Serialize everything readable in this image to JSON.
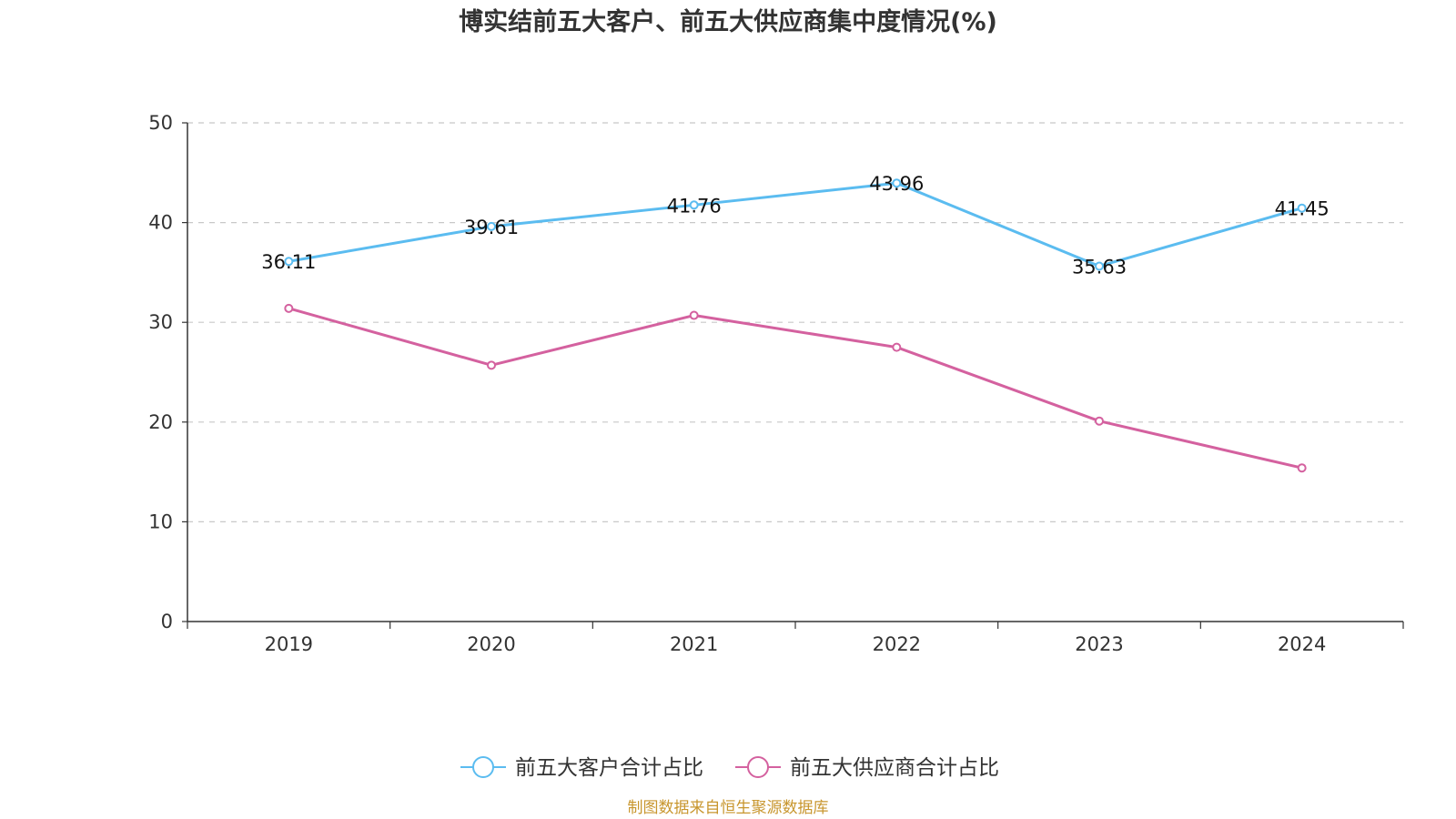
{
  "chart_data": {
    "type": "line",
    "title": "博实结前五大客户、前五大供应商集中度情况(%)",
    "categories": [
      "2019",
      "2020",
      "2021",
      "2022",
      "2023",
      "2024"
    ],
    "ylim": [
      0,
      50
    ],
    "yticks": [
      0,
      10,
      20,
      30,
      40,
      50
    ],
    "grid": true,
    "legend_position": "bottom",
    "series": [
      {
        "name": "前五大客户合计占比",
        "color": "#5bbcf0",
        "values": [
          36.11,
          39.61,
          41.76,
          43.96,
          35.63,
          41.45
        ],
        "show_labels": true
      },
      {
        "name": "前五大供应商合计占比",
        "color": "#d4619f",
        "values": [
          31.4,
          25.7,
          30.7,
          27.5,
          20.1,
          15.4
        ],
        "show_labels": false
      }
    ]
  },
  "source_text": "制图数据来自恒生聚源数据库",
  "source_color": "#c8962e"
}
